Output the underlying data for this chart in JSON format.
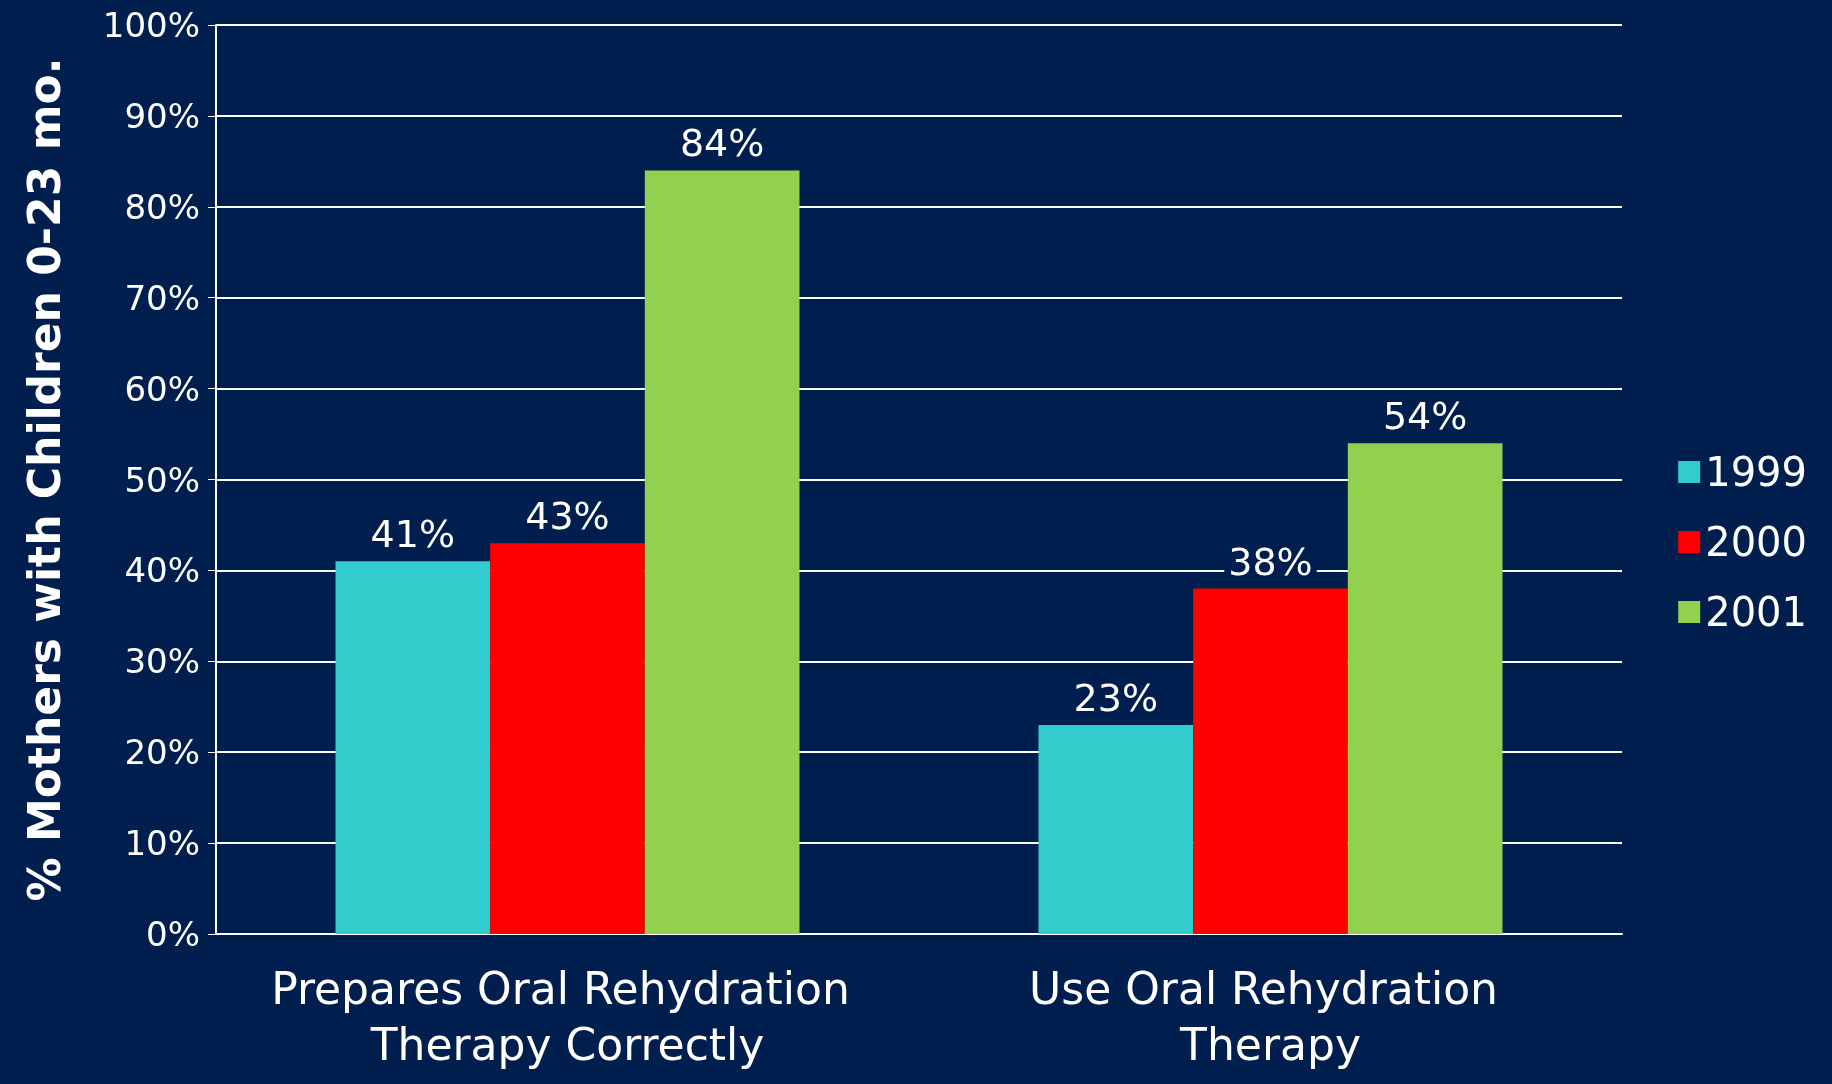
{
  "chart_data": {
    "type": "bar",
    "ylabel": "% Mothers with Children 0-23 mo.",
    "categories": [
      "Prepares Oral Rehydration Therapy Correctly",
      "Use Oral Rehydration Therapy"
    ],
    "series": [
      {
        "name": "1999",
        "color": "#33cccc",
        "values": [
          41,
          23
        ],
        "value_labels": [
          "41%",
          "23%"
        ]
      },
      {
        "name": "2000",
        "color": "#ff0000",
        "values": [
          43,
          38
        ],
        "value_labels": [
          "43%",
          "38%"
        ]
      },
      {
        "name": "2001",
        "color": "#92d050",
        "values": [
          84,
          54
        ],
        "value_labels": [
          "84%",
          "54%"
        ]
      }
    ],
    "ylim": [
      0,
      100
    ],
    "yticks": [
      {
        "value": 0,
        "label": "0%"
      },
      {
        "value": 10,
        "label": "10%"
      },
      {
        "value": 20,
        "label": "20%"
      },
      {
        "value": 30,
        "label": "30%"
      },
      {
        "value": 40,
        "label": "40%"
      },
      {
        "value": 50,
        "label": "50%"
      },
      {
        "value": 60,
        "label": "60%"
      },
      {
        "value": 70,
        "label": "70%"
      },
      {
        "value": 80,
        "label": "80%"
      },
      {
        "value": 90,
        "label": "90%"
      },
      {
        "value": 100,
        "label": "100%"
      }
    ],
    "grid": "y",
    "legend": "right"
  }
}
